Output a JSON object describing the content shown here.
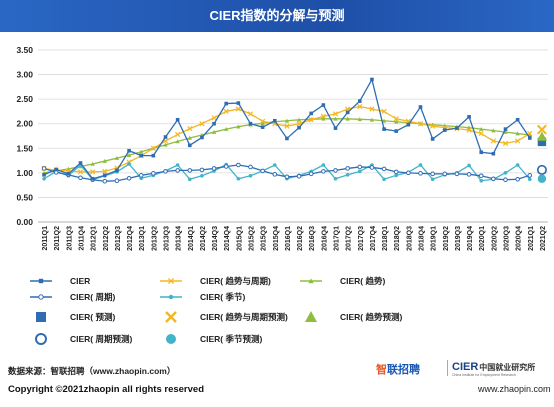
{
  "footer": {
    "source": "数据来源：智联招聘（www.zhaopin.com）",
    "copyright": "Copyright ©2021zhaopin all rights reserved",
    "logo_zhaopin_mark": "智",
    "logo_zhaopin_text": "联招聘",
    "logo_cier": "CIER",
    "logo_cier_cn": "中国就业研究所",
    "logo_cier_en": "China Institute for Employment Research",
    "website": "www.zhaopin.com"
  },
  "chart_data": {
    "type": "line",
    "title": "CIER指数的分解与预测",
    "ylim": [
      0,
      3.5
    ],
    "yticks": [
      "0.00",
      "0.50",
      "1.00",
      "1.50",
      "2.00",
      "2.50",
      "3.00",
      "3.50"
    ],
    "grid": true,
    "legend_position": "bottom",
    "categories": [
      "2011Q1",
      "2011Q2",
      "2011Q3",
      "2011Q4",
      "2012Q1",
      "2012Q2",
      "2012Q3",
      "2012Q4",
      "2013Q1",
      "2013Q2",
      "2013Q3",
      "2013Q4",
      "2014Q1",
      "2014Q2",
      "2014Q3",
      "2014Q4",
      "2015Q1",
      "2015Q2",
      "2015Q3",
      "2015Q4",
      "2016Q1",
      "2016Q2",
      "2016Q3",
      "2016Q4",
      "2017Q1",
      "2017Q2",
      "2017Q3",
      "2017Q4",
      "2018Q1",
      "2018Q2",
      "2018Q3",
      "2018Q4",
      "2019Q1",
      "2019Q2",
      "2019Q3",
      "2019Q4",
      "2020Q1",
      "2020Q2",
      "2020Q3",
      "2020Q4",
      "2021Q1",
      "2021Q2"
    ],
    "series": [
      {
        "name": "CIER",
        "color": "#2f6db3",
        "marker": "square",
        "values": [
          0.96,
          1.07,
          0.98,
          1.2,
          0.88,
          0.95,
          1.05,
          1.45,
          1.35,
          1.35,
          1.73,
          2.08,
          1.56,
          1.72,
          2.0,
          2.41,
          2.42,
          2.0,
          1.93,
          2.06,
          1.7,
          1.92,
          2.21,
          2.38,
          1.91,
          2.23,
          2.46,
          2.9,
          1.89,
          1.85,
          1.98,
          2.34,
          1.69,
          1.87,
          1.91,
          2.14,
          1.42,
          1.39,
          1.89,
          2.08,
          1.71,
          null
        ]
      },
      {
        "name": "CIER( 趋势与周期)",
        "color": "#f3b720",
        "marker": "x",
        "values": [
          1.09,
          1.05,
          1.04,
          1.02,
          1.02,
          1.03,
          1.1,
          1.22,
          1.35,
          1.5,
          1.65,
          1.78,
          1.9,
          2.0,
          2.12,
          2.25,
          2.3,
          2.2,
          2.05,
          2.0,
          1.95,
          2.0,
          2.08,
          2.15,
          2.2,
          2.3,
          2.35,
          2.3,
          2.25,
          2.1,
          2.05,
          2.0,
          1.95,
          1.92,
          1.9,
          1.87,
          1.8,
          1.65,
          1.6,
          1.65,
          1.8,
          null
        ]
      },
      {
        "name": "CIER( 趋势)",
        "color": "#8ebd3f",
        "marker": "triangle",
        "values": [
          1.0,
          1.04,
          1.08,
          1.13,
          1.18,
          1.24,
          1.3,
          1.36,
          1.43,
          1.5,
          1.57,
          1.64,
          1.71,
          1.77,
          1.83,
          1.89,
          1.94,
          1.98,
          2.01,
          2.04,
          2.06,
          2.08,
          2.09,
          2.1,
          2.1,
          2.1,
          2.09,
          2.08,
          2.06,
          2.04,
          2.02,
          2.0,
          1.98,
          1.96,
          1.94,
          1.92,
          1.89,
          1.86,
          1.83,
          1.8,
          1.77,
          null
        ]
      },
      {
        "name": "CIER( 周期)",
        "color": "#2f6db3",
        "marker": "circle-open",
        "values": [
          1.09,
          1.01,
          0.96,
          0.9,
          0.86,
          0.83,
          0.84,
          0.89,
          0.95,
          0.99,
          1.03,
          1.05,
          1.05,
          1.06,
          1.09,
          1.13,
          1.16,
          1.12,
          1.04,
          0.97,
          0.92,
          0.93,
          0.98,
          1.03,
          1.05,
          1.09,
          1.12,
          1.11,
          1.08,
          1.02,
          1.0,
          0.99,
          0.98,
          0.98,
          0.98,
          0.97,
          0.94,
          0.88,
          0.86,
          0.87,
          0.95,
          null
        ]
      },
      {
        "name": "CIER( 季节)",
        "color": "#42b3c9",
        "marker": "circle-filled",
        "values": [
          0.88,
          1.03,
          0.94,
          1.16,
          0.86,
          0.94,
          1.02,
          1.18,
          0.89,
          0.95,
          1.04,
          1.16,
          0.87,
          0.94,
          1.04,
          1.17,
          0.88,
          0.94,
          1.04,
          1.16,
          0.88,
          0.95,
          1.03,
          1.16,
          0.88,
          0.96,
          1.03,
          1.16,
          0.87,
          0.95,
          1.01,
          1.16,
          0.87,
          0.96,
          1.0,
          1.15,
          0.84,
          0.87,
          1.0,
          1.16,
          0.87,
          null
        ]
      },
      {
        "name": "CIER( 预测)",
        "color": "#2f6db3",
        "marker": "square",
        "forecast": true,
        "values": [
          null,
          null,
          null,
          null,
          null,
          null,
          null,
          null,
          null,
          null,
          null,
          null,
          null,
          null,
          null,
          null,
          null,
          null,
          null,
          null,
          null,
          null,
          null,
          null,
          null,
          null,
          null,
          null,
          null,
          null,
          null,
          null,
          null,
          null,
          null,
          null,
          null,
          null,
          null,
          null,
          null,
          1.63
        ]
      },
      {
        "name": "CIER( 趋势与周期预测)",
        "color": "#f3b720",
        "marker": "x",
        "forecast": true,
        "values": [
          null,
          null,
          null,
          null,
          null,
          null,
          null,
          null,
          null,
          null,
          null,
          null,
          null,
          null,
          null,
          null,
          null,
          null,
          null,
          null,
          null,
          null,
          null,
          null,
          null,
          null,
          null,
          null,
          null,
          null,
          null,
          null,
          null,
          null,
          null,
          null,
          null,
          null,
          null,
          null,
          null,
          1.88
        ]
      },
      {
        "name": "CIER( 趋势预测)",
        "color": "#8ebd3f",
        "marker": "triangle",
        "forecast": true,
        "values": [
          null,
          null,
          null,
          null,
          null,
          null,
          null,
          null,
          null,
          null,
          null,
          null,
          null,
          null,
          null,
          null,
          null,
          null,
          null,
          null,
          null,
          null,
          null,
          null,
          null,
          null,
          null,
          null,
          null,
          null,
          null,
          null,
          null,
          null,
          null,
          null,
          null,
          null,
          null,
          null,
          null,
          1.74
        ]
      },
      {
        "name": "CIER( 周期预测)",
        "color": "#2f6db3",
        "marker": "circle-open",
        "forecast": true,
        "values": [
          null,
          null,
          null,
          null,
          null,
          null,
          null,
          null,
          null,
          null,
          null,
          null,
          null,
          null,
          null,
          null,
          null,
          null,
          null,
          null,
          null,
          null,
          null,
          null,
          null,
          null,
          null,
          null,
          null,
          null,
          null,
          null,
          null,
          null,
          null,
          null,
          null,
          null,
          null,
          null,
          null,
          1.06
        ]
      },
      {
        "name": "CIER( 季节预测)",
        "color": "#42b3c9",
        "marker": "circle-filled",
        "forecast": true,
        "values": [
          null,
          null,
          null,
          null,
          null,
          null,
          null,
          null,
          null,
          null,
          null,
          null,
          null,
          null,
          null,
          null,
          null,
          null,
          null,
          null,
          null,
          null,
          null,
          null,
          null,
          null,
          null,
          null,
          null,
          null,
          null,
          null,
          null,
          null,
          null,
          null,
          null,
          null,
          null,
          null,
          null,
          0.88
        ]
      }
    ]
  }
}
